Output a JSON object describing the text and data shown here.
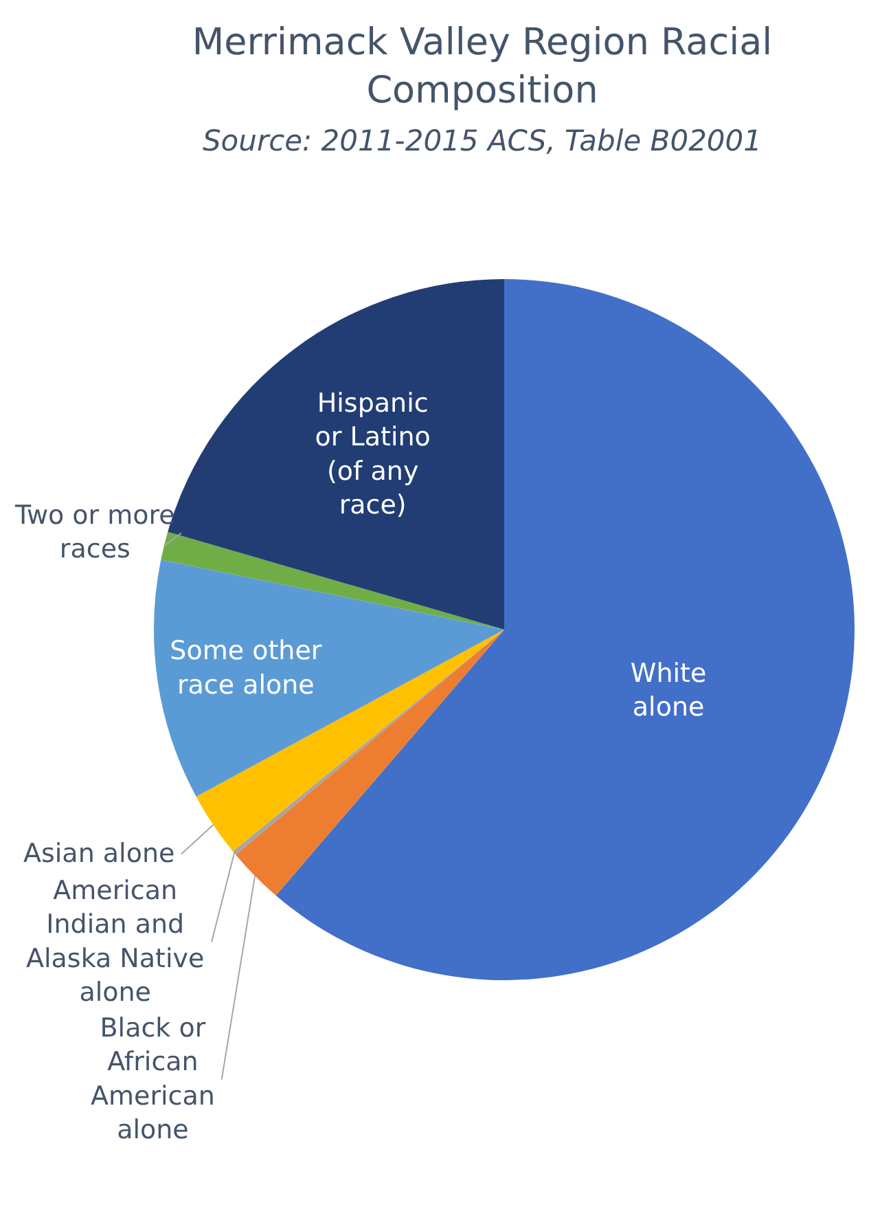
{
  "chart_data": {
    "type": "pie",
    "title": "Merrimack Valley Region Racial Composition",
    "subtitle": "Source: 2011-2015 ACS, Table B02001",
    "categories": [
      "White alone",
      "Black or African American alone",
      "American Indian and Alaska Native alone",
      "Asian alone",
      "Some other race alone",
      "Two or more races",
      "Hispanic or Latino (of any race)"
    ],
    "values": [
      61.3,
      2.6,
      0.2,
      3.0,
      11.1,
      1.3,
      20.5
    ],
    "colors": [
      "#4270c8",
      "#ed7d31",
      "#a5a5a5",
      "#ffc000",
      "#5b9bd5",
      "#70ad47",
      "#213d73"
    ],
    "legend": false
  }
}
